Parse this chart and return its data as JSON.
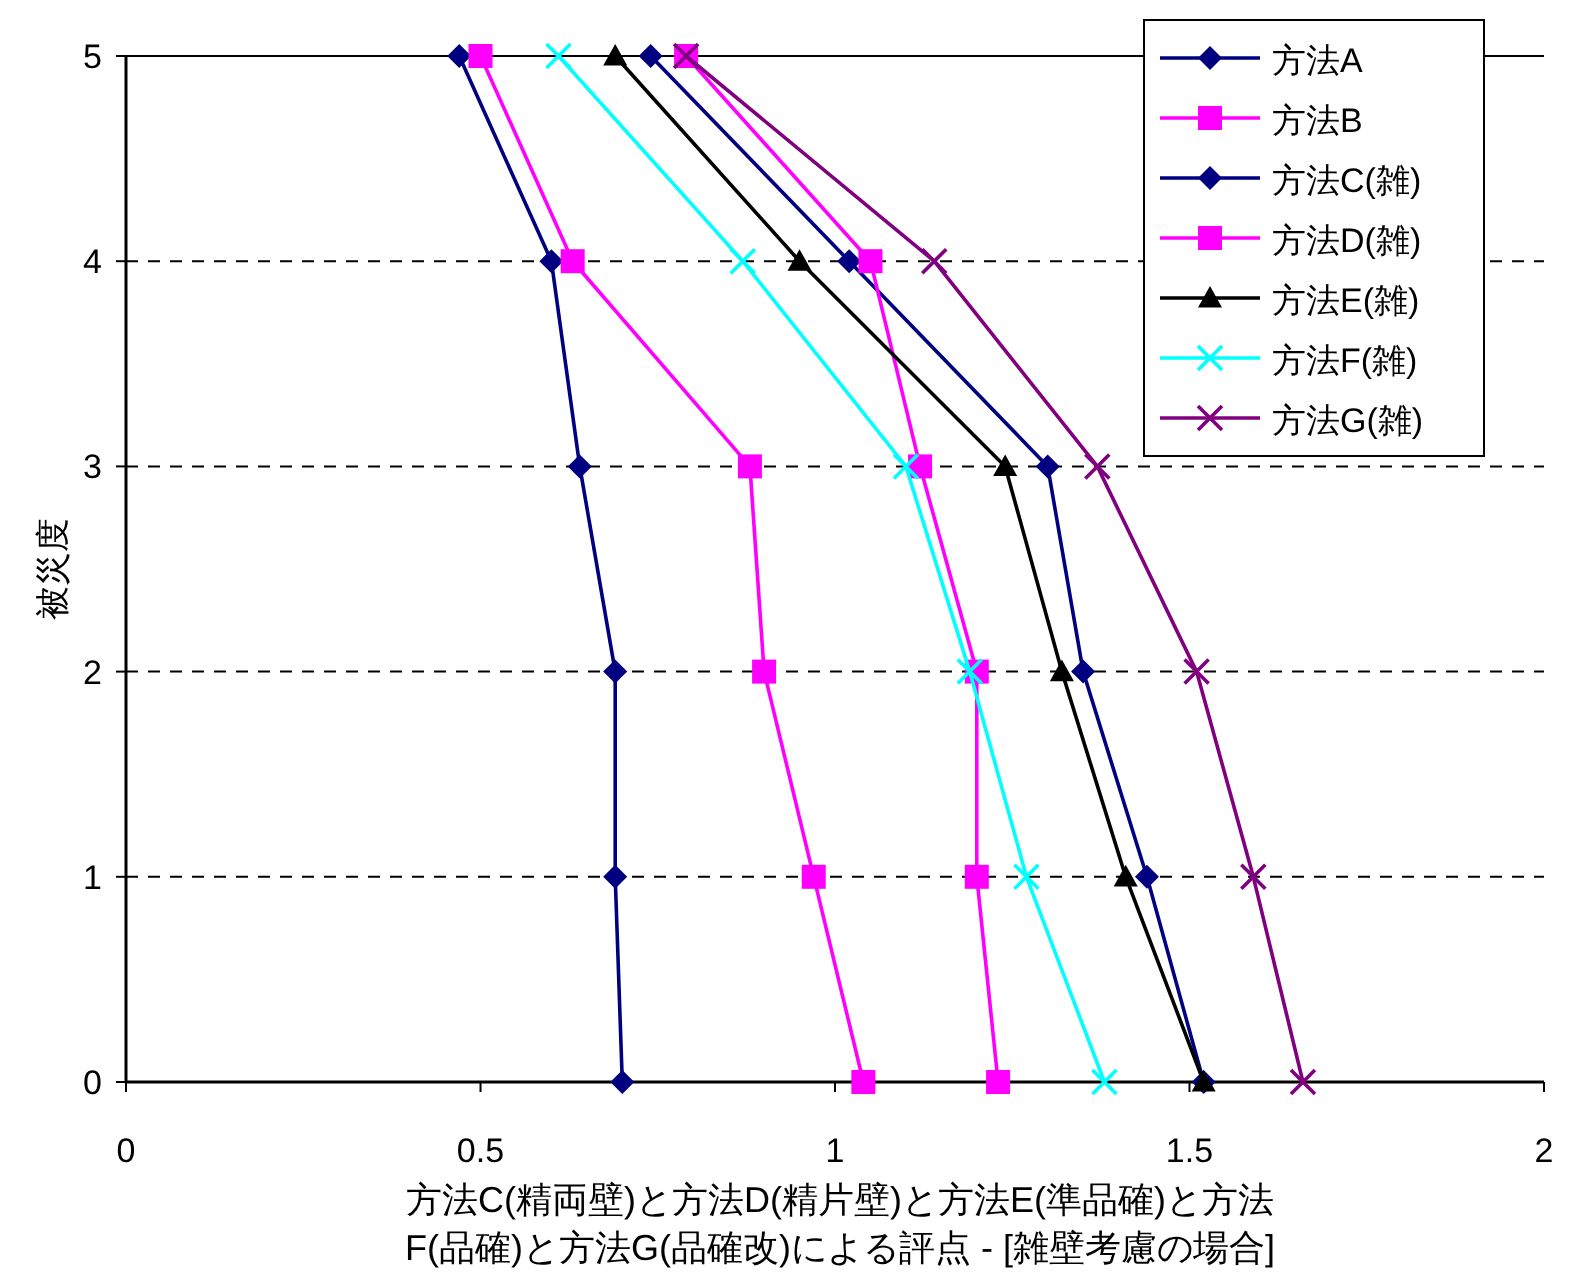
{
  "chart_data": {
    "type": "line",
    "xlabel": "方法C(精両壁)と方法D(精片壁)と方法E(準品確)と方法F(品確)と方法G(品確改)による評点 - [雑壁考慮の場合]",
    "ylabel": "被災度",
    "xlim": [
      0,
      2
    ],
    "ylim": [
      0,
      5
    ],
    "xticks": [
      0,
      0.5,
      1,
      1.5,
      2
    ],
    "yticks": [
      0,
      1,
      2,
      3,
      4,
      5
    ],
    "grid": "y",
    "legend": "top right",
    "series": [
      {
        "name": "方法A",
        "color": "#000080",
        "marker": "diamond",
        "x": [
          0.47,
          0.6,
          0.64,
          0.69,
          0.69,
          0.7
        ],
        "values": [
          5,
          4,
          3,
          2,
          1,
          0
        ]
      },
      {
        "name": "方法B",
        "color": "#ff00ff",
        "marker": "square",
        "x": [
          0.5,
          0.63,
          0.88,
          0.9,
          0.97,
          1.04
        ],
        "values": [
          5,
          4,
          3,
          2,
          1,
          0
        ]
      },
      {
        "name": "方法C(雑)",
        "color": "#000080",
        "marker": "diamond",
        "x": [
          0.74,
          1.02,
          1.3,
          1.35,
          1.44,
          1.52
        ],
        "values": [
          5,
          4,
          3,
          2,
          1,
          0
        ]
      },
      {
        "name": "方法D(雑)",
        "color": "#ff00ff",
        "marker": "square",
        "x": [
          0.79,
          1.05,
          1.12,
          1.2,
          1.2,
          1.23
        ],
        "values": [
          5,
          4,
          3,
          2,
          1,
          0
        ]
      },
      {
        "name": "方法E(雑)",
        "color": "#000000",
        "marker": "triangle",
        "x": [
          0.69,
          0.95,
          1.24,
          1.32,
          1.41,
          1.52
        ],
        "values": [
          5,
          4,
          3,
          2,
          1,
          0
        ]
      },
      {
        "name": "方法F(雑)",
        "color": "#00ffff",
        "marker": "cross",
        "x": [
          0.61,
          0.87,
          1.1,
          1.19,
          1.27,
          1.38
        ],
        "values": [
          5,
          4,
          3,
          2,
          1,
          0
        ]
      },
      {
        "name": "方法G(雑)",
        "color": "#800080",
        "marker": "cross",
        "x": [
          0.79,
          1.14,
          1.37,
          1.51,
          1.59,
          1.66
        ],
        "values": [
          5,
          4,
          3,
          2,
          1,
          0
        ]
      }
    ]
  }
}
